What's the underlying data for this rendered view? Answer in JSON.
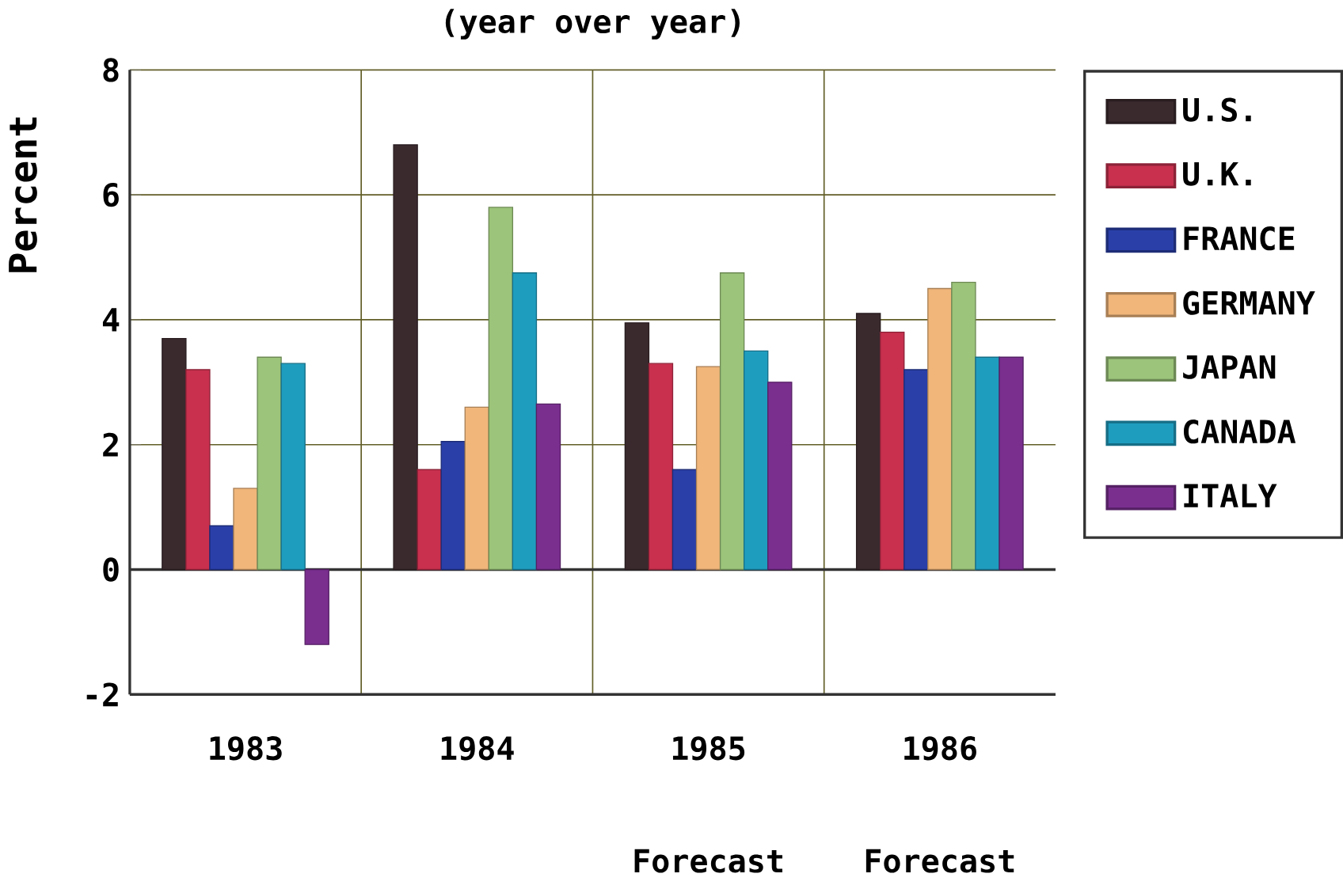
{
  "chart_data": {
    "type": "bar",
    "title": "(year over year)",
    "ylabel": "Percent",
    "categories": [
      "1983",
      "1984",
      "1985",
      "1986"
    ],
    "series": [
      {
        "name": "U.S.",
        "color": "#3a2a2e",
        "values": [
          3.7,
          6.8,
          3.95,
          4.1
        ]
      },
      {
        "name": "U.K.",
        "color": "#c8304e",
        "values": [
          3.2,
          1.6,
          3.3,
          3.8
        ]
      },
      {
        "name": "FRANCE",
        "color": "#2a3fa8",
        "values": [
          0.7,
          2.05,
          1.6,
          3.2
        ]
      },
      {
        "name": "GERMANY",
        "color": "#f0b67a",
        "values": [
          1.3,
          2.6,
          3.25,
          4.5
        ]
      },
      {
        "name": "JAPAN",
        "color": "#9cc47a",
        "values": [
          3.4,
          5.8,
          4.75,
          4.6
        ]
      },
      {
        "name": "CANADA",
        "color": "#1f9dbf",
        "values": [
          3.3,
          4.75,
          3.5,
          3.4
        ]
      },
      {
        "name": "ITALY",
        "color": "#7a2f8f",
        "values": [
          -1.2,
          2.65,
          3.0,
          3.4
        ]
      }
    ],
    "ylim": [
      -2,
      8
    ],
    "yticks": [
      -2,
      0,
      2,
      4,
      6,
      8
    ],
    "grid": true,
    "legend": "right",
    "annotations": [
      "Forecast",
      "Forecast"
    ]
  }
}
